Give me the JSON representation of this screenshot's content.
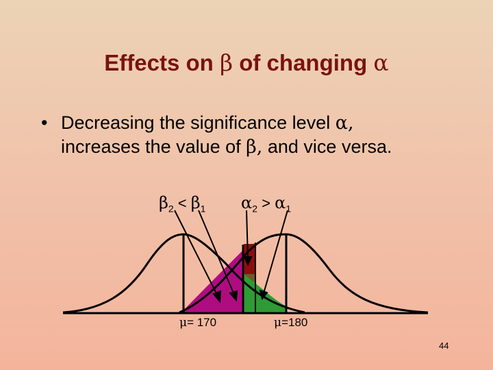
{
  "title": {
    "prefix": "Effects on ",
    "beta": "β",
    "middle": " of changing ",
    "alpha": "α"
  },
  "bullet": {
    "marker": "•",
    "line1_text": "Decreasing the significance level ",
    "line1_alpha": "α,",
    "line2_text": "increases the value of ",
    "line2_beta": "β,",
    "line2_end": " and vice versa."
  },
  "labels": {
    "beta_compare": {
      "b": "β",
      "sub2": "2",
      "op": " < ",
      "b1": "β",
      "sub1": "1"
    },
    "alpha_compare": {
      "a": "α",
      "sub2": "2",
      "op": " > ",
      "a1": "α",
      "sub1": "1"
    },
    "mu_left": {
      "mu": "μ",
      "text": "= 170"
    },
    "mu_right": {
      "mu": "μ",
      "text": "=180"
    }
  },
  "slide_number": "44",
  "colors": {
    "title": "#7a1210",
    "beta2_region": "#b00c82",
    "beta1_region": "#6e5a28",
    "alpha1_region": "#2f9b35",
    "alpha2_region": "#8c0d0d",
    "curve": "#000000"
  }
}
